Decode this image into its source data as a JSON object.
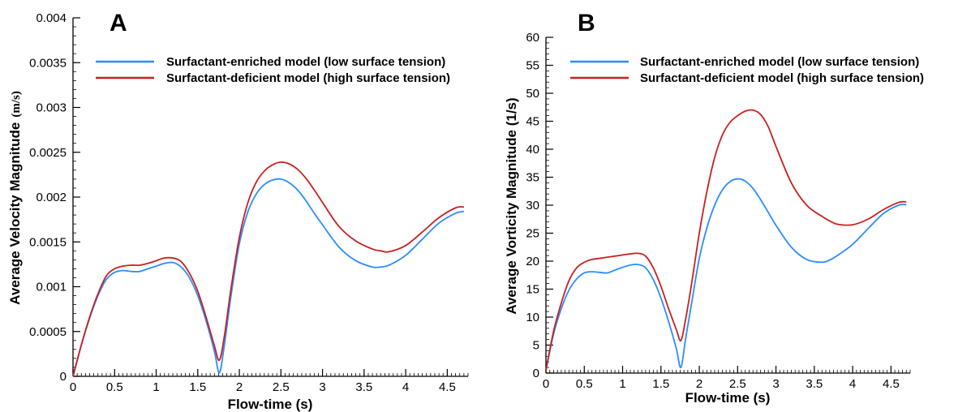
{
  "colors": {
    "enriched": "#2a8cff",
    "deficient": "#c8201f"
  },
  "chart_data": [
    {
      "type": "line",
      "panel_label": "A",
      "xlabel": "Flow-time (s)",
      "ylabel": "Average Velocity Magnitude",
      "ylabel_unit": "(m/s)",
      "xlim": [
        0,
        4.75
      ],
      "ylim": [
        0,
        0.004
      ],
      "xticks": [
        0,
        0.5,
        1,
        1.5,
        2,
        2.5,
        3,
        3.5,
        4,
        4.5
      ],
      "xtick_labels": [
        "0",
        "0.5",
        "1",
        "1.5",
        "2",
        "2.5",
        "3",
        "3.5",
        "4",
        "4.5"
      ],
      "yticks": [
        0,
        0.0005,
        0.001,
        0.0015,
        0.002,
        0.0025,
        0.003,
        0.0035,
        0.004
      ],
      "ytick_labels": [
        "0",
        "0.0005",
        "0.001",
        "0.0015",
        "0.002",
        "0.0025",
        "0.003",
        "0.0035",
        "0.004"
      ],
      "legend_position": "top-right",
      "series": [
        {
          "name": "Surfactant-enriched model (low surface tension)",
          "color": "#2a8cff",
          "x": [
            0,
            0.1,
            0.2,
            0.3,
            0.4,
            0.5,
            0.6,
            0.7,
            0.8,
            0.9,
            1.0,
            1.1,
            1.2,
            1.3,
            1.4,
            1.5,
            1.6,
            1.7,
            1.76,
            1.82,
            1.9,
            2.0,
            2.1,
            2.2,
            2.3,
            2.4,
            2.5,
            2.6,
            2.7,
            2.8,
            2.9,
            3.0,
            3.2,
            3.4,
            3.6,
            3.7,
            3.8,
            4.0,
            4.2,
            4.4,
            4.6,
            4.7
          ],
          "y": [
            0,
            0.00035,
            0.00065,
            0.0009,
            0.00108,
            0.00116,
            0.00118,
            0.00117,
            0.00117,
            0.0012,
            0.00123,
            0.00126,
            0.00127,
            0.00122,
            0.0011,
            0.0009,
            0.00062,
            0.00028,
            4e-05,
            0.00035,
            0.0009,
            0.00148,
            0.00183,
            0.00203,
            0.00214,
            0.00219,
            0.0022,
            0.00216,
            0.00208,
            0.00196,
            0.00182,
            0.00169,
            0.00144,
            0.00129,
            0.00122,
            0.00122,
            0.00124,
            0.00135,
            0.00153,
            0.00171,
            0.00182,
            0.00184
          ]
        },
        {
          "name": "Surfactant-deficient model (high surface tension)",
          "color": "#c8201f",
          "x": [
            0,
            0.1,
            0.2,
            0.3,
            0.4,
            0.5,
            0.6,
            0.7,
            0.8,
            0.9,
            1.0,
            1.1,
            1.2,
            1.3,
            1.4,
            1.5,
            1.6,
            1.7,
            1.76,
            1.82,
            1.9,
            2.0,
            2.1,
            2.2,
            2.3,
            2.4,
            2.5,
            2.6,
            2.7,
            2.8,
            2.9,
            3.0,
            3.2,
            3.4,
            3.6,
            3.7,
            3.8,
            4.0,
            4.2,
            4.4,
            4.6,
            4.7
          ],
          "y": [
            0,
            0.00035,
            0.00066,
            0.00092,
            0.00112,
            0.0012,
            0.00123,
            0.00124,
            0.00124,
            0.00126,
            0.00129,
            0.00132,
            0.00132,
            0.00128,
            0.00115,
            0.00095,
            0.00066,
            0.00034,
            0.00018,
            0.00045,
            0.00098,
            0.00155,
            0.00193,
            0.00216,
            0.00229,
            0.00236,
            0.00239,
            0.00237,
            0.00231,
            0.00221,
            0.00208,
            0.00194,
            0.00167,
            0.00151,
            0.00142,
            0.0014,
            0.00139,
            0.00146,
            0.00161,
            0.00177,
            0.00188,
            0.00189
          ]
        }
      ]
    },
    {
      "type": "line",
      "panel_label": "B",
      "xlabel": "Flow-time (s)",
      "ylabel": "Average Vorticity Magnitude (1/s)",
      "xlim": [
        0,
        4.75
      ],
      "ylim": [
        0,
        60
      ],
      "xticks": [
        0,
        0.5,
        1,
        1.5,
        2,
        2.5,
        3,
        3.5,
        4,
        4.5
      ],
      "xtick_labels": [
        "0",
        "0.5",
        "1",
        "1.5",
        "2",
        "2.5",
        "3",
        "3.5",
        "4",
        "4.5"
      ],
      "yticks": [
        0,
        5,
        10,
        15,
        20,
        25,
        30,
        35,
        40,
        45,
        50,
        55,
        60
      ],
      "ytick_labels": [
        "0",
        "5",
        "10",
        "15",
        "20",
        "25",
        "30",
        "35",
        "40",
        "45",
        "50",
        "55",
        "60"
      ],
      "legend_position": "top-right",
      "series": [
        {
          "name": "Surfactant-enriched model (low surface tension)",
          "color": "#2a8cff",
          "x": [
            0,
            0.1,
            0.2,
            0.3,
            0.4,
            0.5,
            0.6,
            0.7,
            0.8,
            0.9,
            1.0,
            1.1,
            1.2,
            1.3,
            1.4,
            1.5,
            1.6,
            1.7,
            1.76,
            1.82,
            1.9,
            2.0,
            2.1,
            2.2,
            2.3,
            2.4,
            2.5,
            2.6,
            2.7,
            2.8,
            2.9,
            3.0,
            3.2,
            3.4,
            3.6,
            3.7,
            3.8,
            4.0,
            4.2,
            4.4,
            4.6,
            4.7
          ],
          "y": [
            0.5,
            7,
            11.5,
            14.8,
            16.8,
            17.9,
            18.1,
            18.0,
            17.9,
            18.4,
            18.9,
            19.3,
            19.4,
            18.8,
            16.7,
            13.4,
            9.2,
            4.4,
            1.0,
            6.0,
            12.5,
            20.5,
            26.0,
            30.0,
            32.7,
            34.2,
            34.7,
            34.3,
            33.0,
            31.0,
            28.7,
            26.4,
            22.5,
            20.3,
            19.8,
            20.2,
            21.0,
            23.0,
            25.8,
            28.5,
            30.0,
            30.1
          ]
        },
        {
          "name": "Surfactant-deficient model (high surface tension)",
          "color": "#c8201f",
          "x": [
            0,
            0.1,
            0.2,
            0.3,
            0.4,
            0.5,
            0.6,
            0.7,
            0.8,
            0.9,
            1.0,
            1.1,
            1.2,
            1.3,
            1.4,
            1.5,
            1.6,
            1.7,
            1.76,
            1.82,
            1.9,
            2.0,
            2.1,
            2.2,
            2.3,
            2.4,
            2.5,
            2.6,
            2.7,
            2.8,
            2.9,
            3.0,
            3.2,
            3.4,
            3.6,
            3.7,
            3.8,
            4.0,
            4.2,
            4.4,
            4.6,
            4.7
          ],
          "y": [
            0.5,
            7.5,
            12.5,
            16.5,
            18.8,
            19.8,
            20.3,
            20.5,
            20.7,
            20.9,
            21.1,
            21.3,
            21.4,
            20.9,
            18.8,
            15.5,
            11.5,
            7.8,
            5.8,
            9.5,
            16.0,
            25.0,
            32.5,
            38.5,
            42.5,
            44.8,
            46.0,
            46.8,
            47.0,
            46.2,
            44.0,
            40.5,
            34.0,
            30.0,
            28.0,
            27.2,
            26.6,
            26.5,
            27.5,
            29.2,
            30.5,
            30.6
          ]
        }
      ]
    }
  ]
}
